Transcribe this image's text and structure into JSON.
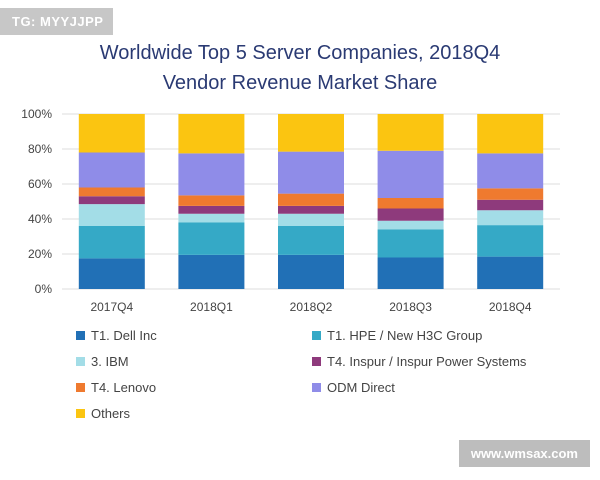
{
  "watermarks": {
    "top_left": "TG: MYYJJPP",
    "bottom_right": "www.wmsax.com"
  },
  "chart_data": {
    "type": "bar",
    "stacked": true,
    "title": [
      "Worldwide Top 5 Server Companies, 2018Q4",
      "Vendor Revenue Market Share"
    ],
    "categories": [
      "2017Q4",
      "2018Q1",
      "2018Q2",
      "2018Q3",
      "2018Q4"
    ],
    "ylim": [
      0,
      100
    ],
    "yticks": [
      "0%",
      "20%",
      "40%",
      "60%",
      "80%",
      "100%"
    ],
    "grid": true,
    "legend_position": "bottom",
    "series": [
      {
        "name": "T1. Dell Inc",
        "color": "#2170b6",
        "values": [
          17.5,
          19.5,
          19.5,
          18.0,
          18.5
        ]
      },
      {
        "name": "T1. HPE / New H3C Group",
        "color": "#35a9c6",
        "values": [
          18.5,
          18.5,
          16.5,
          16.0,
          18.0
        ]
      },
      {
        "name": "3. IBM",
        "color": "#a3dde7",
        "values": [
          12.5,
          5.0,
          7.0,
          5.0,
          8.5
        ]
      },
      {
        "name": "T4. Inspur / Inspur Power Systems",
        "color": "#8e3a7c",
        "values": [
          4.5,
          4.5,
          4.5,
          7.0,
          6.0
        ]
      },
      {
        "name": "T4. Lenovo",
        "color": "#ef7a2f",
        "values": [
          5.0,
          6.0,
          7.0,
          6.0,
          6.5
        ]
      },
      {
        "name": "ODM Direct",
        "color": "#8f8ce8",
        "values": [
          20.0,
          24.0,
          24.0,
          27.0,
          20.0
        ]
      },
      {
        "name": "Others",
        "color": "#fbc511",
        "values": [
          22.0,
          22.5,
          21.5,
          21.0,
          22.5
        ]
      }
    ]
  }
}
